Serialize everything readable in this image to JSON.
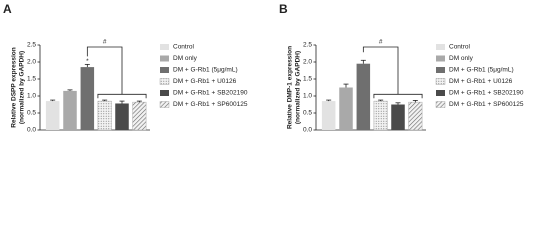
{
  "chart_data": [
    {
      "type": "bar",
      "panel": "A",
      "ylabel": [
        "Relative DSPP expression",
        "(normalized by GAPDH)"
      ],
      "categories": [
        "Control",
        "DM only",
        "DM + G-Rb1 (5μg/mL)",
        "DM + G-Rb1 + U0126",
        "DM + G-Rb1 + SB202190",
        "DM + G-Rb1 + SP600125"
      ],
      "values": [
        0.85,
        1.15,
        1.85,
        0.85,
        0.78,
        0.82
      ],
      "errors": [
        0.03,
        0.03,
        0.08,
        0.03,
        0.07,
        0.03
      ],
      "colors": [
        "#e2e2e2",
        "#a9a9a9",
        "#6f6f6f",
        "#cfcfcf",
        "#4a4a4a",
        "#bdbdbd"
      ],
      "fills": [
        "solid",
        "solid",
        "solid",
        "dots",
        "solid",
        "hatch"
      ],
      "ylim": [
        0,
        2.5
      ],
      "yticks": [
        {
          "value": 0,
          "label": "0.0"
        },
        {
          "value": 0.5,
          "label": "0.5"
        },
        {
          "value": 1,
          "label": "1.0"
        },
        {
          "value": 1.5,
          "label": "1.5"
        },
        {
          "value": 2,
          "label": "2.0"
        },
        {
          "value": 2.5,
          "label": "2.5"
        }
      ],
      "annotations": [
        "*",
        "#"
      ]
    },
    {
      "type": "bar",
      "panel": "B",
      "ylabel": [
        "Relative DMP-1 expression",
        "(normalized by GAPDH)"
      ],
      "categories": [
        "Control",
        "DM only",
        "DM + G-Rb1 (5μg/mL)",
        "DM + G-Rb1 + U0126",
        "DM + G-Rb1 + SB202190",
        "DM + G-Rb1 + SP600125"
      ],
      "values": [
        0.85,
        1.25,
        1.95,
        0.85,
        0.75,
        0.82
      ],
      "errors": [
        0.03,
        0.1,
        0.1,
        0.03,
        0.05,
        0.05
      ],
      "colors": [
        "#e2e2e2",
        "#a9a9a9",
        "#6f6f6f",
        "#cfcfcf",
        "#4a4a4a",
        "#bdbdbd"
      ],
      "fills": [
        "solid",
        "solid",
        "solid",
        "dots",
        "solid",
        "hatch"
      ],
      "ylim": [
        0,
        2.5
      ],
      "yticks": [
        {
          "value": 0,
          "label": "0.0"
        },
        {
          "value": 0.5,
          "label": "0.5"
        },
        {
          "value": 1,
          "label": "1.0"
        },
        {
          "value": 1.5,
          "label": "1.5"
        },
        {
          "value": 2,
          "label": "2.0"
        },
        {
          "value": 2.5,
          "label": "2.5"
        }
      ],
      "annotations": [
        "#"
      ]
    }
  ]
}
